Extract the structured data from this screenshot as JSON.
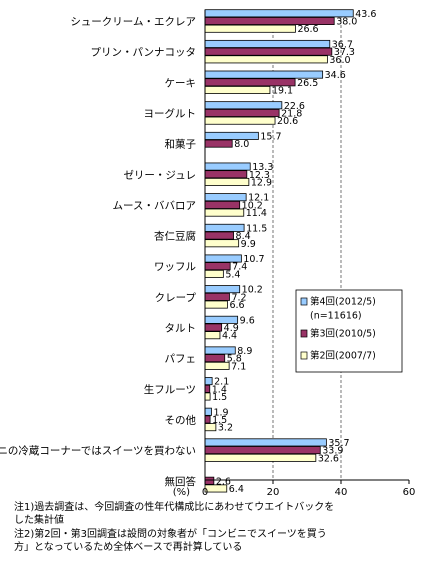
{
  "chart_data": {
    "type": "bar",
    "orientation": "horizontal",
    "categories": [
      "シュークリーム・エクレア",
      "プリン・パンナコッタ",
      "ケーキ",
      "ヨーグルト",
      "和菓子",
      "ゼリー・ジュレ",
      "ムース・ババロア",
      "杏仁豆腐",
      "ワッフル",
      "クレープ",
      "タルト",
      "パフェ",
      "生フルーツ",
      "その他",
      "コンビニの冷蔵コーナーではスイーツを買わない",
      "無回答"
    ],
    "series": [
      {
        "name": "第4回(2012/5)",
        "color": "#99ccff",
        "values": [
          43.6,
          36.7,
          34.6,
          22.6,
          15.7,
          13.3,
          12.1,
          11.5,
          10.7,
          10.2,
          9.6,
          8.9,
          2.1,
          1.9,
          35.7,
          null
        ]
      },
      {
        "name": "第3回(2010/5)",
        "color": "#993366",
        "values": [
          38.0,
          37.3,
          26.5,
          21.8,
          8.0,
          12.3,
          10.2,
          8.4,
          7.4,
          7.2,
          4.9,
          5.8,
          1.4,
          1.5,
          33.9,
          2.6
        ]
      },
      {
        "name": "第2回(2007/7)",
        "color": "#ffffcc",
        "values": [
          26.6,
          36.0,
          19.1,
          20.6,
          null,
          12.9,
          11.4,
          9.9,
          5.4,
          6.6,
          4.4,
          7.1,
          1.5,
          3.2,
          32.6,
          6.4
        ]
      }
    ],
    "value_labels": [
      [
        "43.6",
        "38.0",
        "26.6"
      ],
      [
        "36.7",
        "37.3",
        "36.0"
      ],
      [
        "34.6",
        "26.5",
        "19.1"
      ],
      [
        "22.6",
        "21.8",
        "20.6"
      ],
      [
        "15.7",
        "8.0",
        ""
      ],
      [
        "13.3",
        "12.3",
        "12.9"
      ],
      [
        "12.1",
        "10.2",
        "11.4"
      ],
      [
        "11.5",
        "8.4",
        "9.9"
      ],
      [
        "10.7",
        "7.4",
        "5.4"
      ],
      [
        "10.2",
        "7.2",
        "6.6"
      ],
      [
        "9.6",
        "4.9",
        "4.4"
      ],
      [
        "8.9",
        "5.8",
        "7.1"
      ],
      [
        "2.1",
        "1.4",
        "1.5"
      ],
      [
        "1.9",
        "1.5",
        "3.2"
      ],
      [
        "35.7",
        "33.9",
        "32.6"
      ],
      [
        "",
        "2.6",
        "6.4"
      ]
    ],
    "xlim": [
      0,
      60
    ],
    "x_ticks": [
      "0",
      "20",
      "40",
      "60"
    ],
    "xlabel": "(%)",
    "grid": "vertical dashed at 20 and 40",
    "legend": {
      "position": "right-middle",
      "entries": [
        "第4回(2012/5)",
        "(n=11616)",
        "第3回(2010/5)",
        "第2回(2007/7)"
      ]
    }
  },
  "notes": [
    "注1)過去調査は、今回調査の性年代構成比にあわせてウエイトバックを",
    "した集計値",
    "注2)第2回・第3回調査は設問の対象者が「コンビニでスイーツを買う",
    "方」となっているため全体ベースで再計算している"
  ]
}
